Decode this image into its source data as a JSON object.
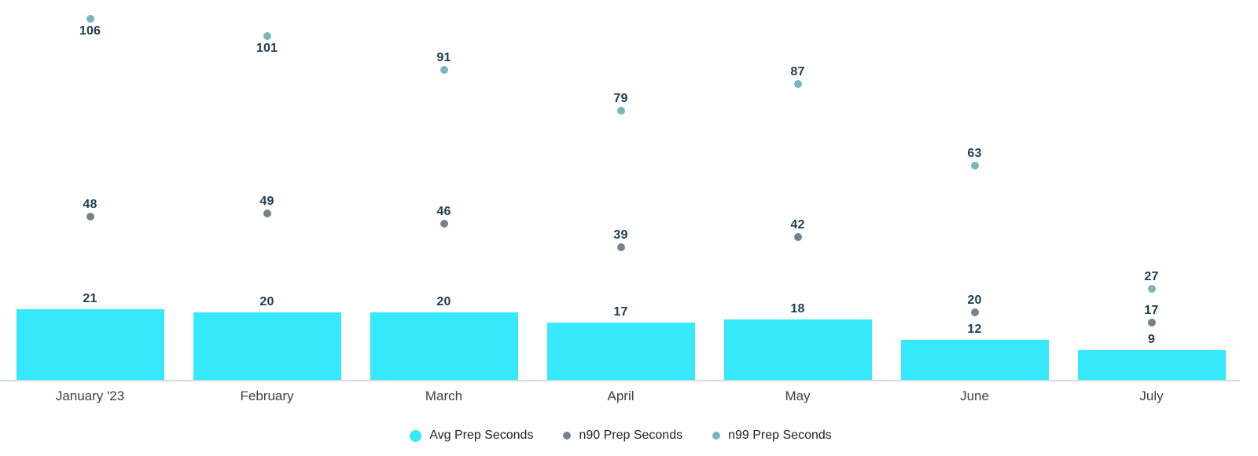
{
  "colors": {
    "avg": "#35E8FA",
    "n90": "#75838D",
    "n99": "#7DB5BE",
    "value_label": "#1D3D50",
    "axis_label": "#3C4043",
    "legend_text": "#202124",
    "axis_line": "#D7DBE4",
    "background": "#FFFFFF"
  },
  "chart_data": {
    "type": "bar",
    "subtype": "bar with point series overlay",
    "categories": [
      "January '23",
      "February",
      "March",
      "April",
      "May",
      "June",
      "July"
    ],
    "series": [
      {
        "name": "Avg Prep Seconds",
        "type": "bar",
        "color_key": "avg",
        "values": [
          21,
          20,
          20,
          17,
          18,
          12,
          9
        ]
      },
      {
        "name": "n90 Prep Seconds",
        "type": "point",
        "color_key": "n90",
        "values": [
          48,
          49,
          46,
          39,
          42,
          20,
          17
        ]
      },
      {
        "name": "n99 Prep Seconds",
        "type": "point",
        "color_key": "n99",
        "values": [
          106,
          101,
          91,
          79,
          87,
          63,
          27
        ]
      }
    ],
    "title": "",
    "xlabel": "",
    "ylabel": "",
    "ylim": [
      0,
      111.5
    ],
    "grid": false,
    "y_axis_visible": false,
    "data_labels": true,
    "legend_position": "bottom-center"
  }
}
